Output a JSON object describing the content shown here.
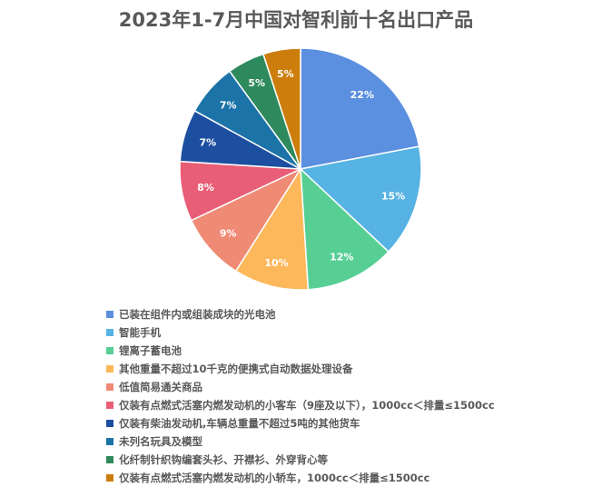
{
  "chart_data": {
    "type": "pie",
    "title": "2023年1-7月中国对智利前十名出口产品",
    "slices": [
      {
        "label": "已装在组件内或组装成块的光电池",
        "value": 22,
        "text": "22%",
        "color": "#5b8fe0"
      },
      {
        "label": "智能手机",
        "value": 15,
        "text": "15%",
        "color": "#57b3e3"
      },
      {
        "label": "锂离子蓄电池",
        "value": 12,
        "text": "12%",
        "color": "#57cf94"
      },
      {
        "label": "其他重量不超过10千克的便携式自动数据处理设备",
        "value": 10,
        "text": "10%",
        "color": "#fdb85b"
      },
      {
        "label": "低值简易通关商品",
        "value": 9,
        "text": "9%",
        "color": "#ef8a75"
      },
      {
        "label": "仅装有点燃式活塞内燃发动机的小客车（9座及以下），1000cc＜排量≤1500cc",
        "value": 8,
        "text": "8%",
        "color": "#e85e77"
      },
      {
        "label": "仅装有柴油发动机,车辆总重量不超过5吨的其他货车",
        "value": 7,
        "text": "7%",
        "color": "#1d4fa0"
      },
      {
        "label": "未列名玩具及模型",
        "value": 7,
        "text": "7%",
        "color": "#1c73a8"
      },
      {
        "label": "化纤制针织钩编套头衫、开襟衫、外穿背心等",
        "value": 5,
        "text": "5%",
        "color": "#2e8a5c"
      },
      {
        "label": "仅装有点燃式活塞内燃发动机的小轿车，1000cc＜排量≤1500cc",
        "value": 5,
        "text": "5%",
        "color": "#cc7d0c"
      }
    ]
  }
}
